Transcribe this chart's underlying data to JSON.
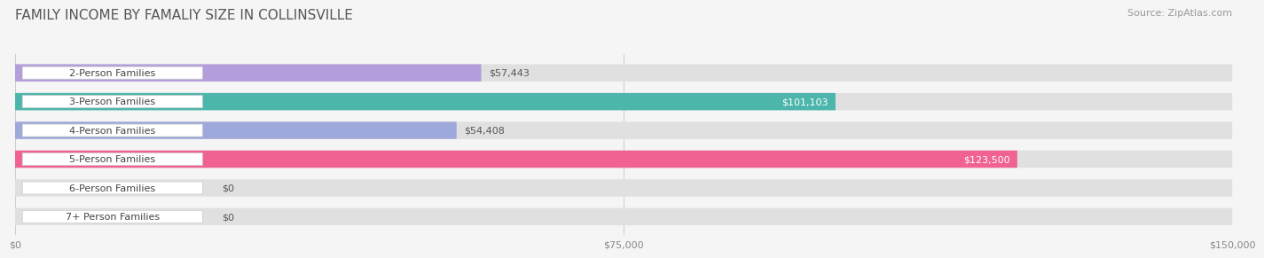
{
  "title": "FAMILY INCOME BY FAMALIY SIZE IN COLLINSVILLE",
  "source": "Source: ZipAtlas.com",
  "categories": [
    "2-Person Families",
    "3-Person Families",
    "4-Person Families",
    "5-Person Families",
    "6-Person Families",
    "7+ Person Families"
  ],
  "values": [
    57443,
    101103,
    54408,
    123500,
    0,
    0
  ],
  "bar_colors": [
    "#b39ddb",
    "#4db6ac",
    "#9fa8da",
    "#f06292",
    "#ffcc99",
    "#f4a0a0"
  ],
  "label_colors": [
    "#555555",
    "#ffffff",
    "#555555",
    "#ffffff",
    "#555555",
    "#555555"
  ],
  "bg_color": "#f5f5f5",
  "bar_bg_color": "#e0e0e0",
  "x_max": 150000,
  "x_ticks": [
    0,
    75000,
    150000
  ],
  "x_tick_labels": [
    "$0",
    "$75,000",
    "$150,000"
  ],
  "title_fontsize": 11,
  "source_fontsize": 8,
  "label_fontsize": 8,
  "value_fontsize": 8
}
